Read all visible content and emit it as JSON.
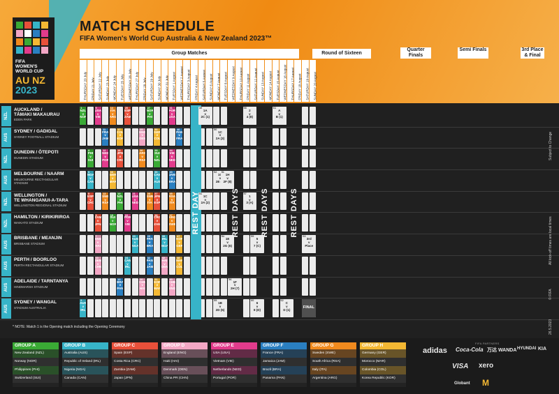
{
  "title": "MATCH SCHEDULE",
  "subtitle": "FIFA Women's World Cup Australia & New Zealand 2023™",
  "logo": {
    "line1": "FIFA",
    "line2": "WOMEN'S",
    "line3": "WORLD CUP",
    "countries": "AU NZ",
    "year": "2023"
  },
  "phases": {
    "group": "Group Matches",
    "r16": "Round of Sixteen",
    "qf": "Quarter Finals",
    "sf": "Semi Finals",
    "final": "3rd Place & Final"
  },
  "dates": [
    "THURSDAY 20 July",
    "FRIDAY 21 July",
    "SATURDAY 22 July",
    "SUNDAY 23 July",
    "MONDAY 24 July",
    "TUESDAY 25 July",
    "WEDNESDAY 26 July",
    "THURSDAY 27 July",
    "FRIDAY 28 July",
    "SATURDAY 29 July",
    "SUNDAY 30 July",
    "MONDAY 31 July",
    "TUESDAY 1 August",
    "WEDNESDAY 2 August",
    "THURSDAY 3 August",
    "FRIDAY 4 August",
    "SATURDAY 5 August",
    "SUNDAY 6 August",
    "MONDAY 7 August",
    "TUESDAY 8 August",
    "WEDNESDAY 9 August",
    "THURSDAY 10 August",
    "FRIDAY 11 August",
    "SATURDAY 12 August",
    "SUNDAY 13 August",
    "MONDAY 14 August",
    "TUESDAY 15 August",
    "WEDNESDAY 16 August",
    "THURSDAY 17 August",
    "FRIDAY 18 August",
    "SATURDAY 19 August",
    "SUNDAY 20 August"
  ],
  "venues": [
    {
      "country": "NZL",
      "name": "AUCKLAND /\nTĀMAKI MAKAURAU",
      "stadium": "EDEN PARK"
    },
    {
      "country": "AUS",
      "name": "SYDNEY / GADIGAL",
      "stadium": "SYDNEY FOOTBALL STADIUM"
    },
    {
      "country": "NZL",
      "name": "DUNEDIN / ŌTEPOTI",
      "stadium": "DUNEDIN STADIUM"
    },
    {
      "country": "AUS",
      "name": "MELBOURNE / NAARM",
      "stadium": "MELBOURNE RECTANGULAR\nSTADIUM"
    },
    {
      "country": "NZL",
      "name": "WELLINGTON /\nTE WHANGANUI-A-TARA",
      "stadium": "WELLINGTON REGIONAL STADIUM"
    },
    {
      "country": "NZL",
      "name": "HAMILTON / KIRIKIRIROA",
      "stadium": "WAIKATO STADIUM"
    },
    {
      "country": "AUS",
      "name": "BRISBANE / MEANJIN",
      "stadium": "BRISBANE STADIUM"
    },
    {
      "country": "AUS",
      "name": "PERTH / BOORLOO",
      "stadium": "PERTH RECTANGULAR STADIUM"
    },
    {
      "country": "AUS",
      "name": "ADELAIDE / TARNTANYA",
      "stadium": "HINDMARSH STADIUM"
    },
    {
      "country": "AUS",
      "name": "SYDNEY / WANGAL",
      "stadium": "STADIUM AUSTRALIA"
    }
  ],
  "matches": [
    {
      "row": 0,
      "col": 0,
      "n": "1",
      "time": "19:00",
      "t1": "NZL",
      "t2": "NOR",
      "color": "#3aaa35"
    },
    {
      "row": 0,
      "col": 2,
      "n": "9",
      "time": "19:00",
      "t1": "USA",
      "t2": "VIE",
      "color": "#e23b8c"
    },
    {
      "row": 0,
      "col": 4,
      "n": "14",
      "time": "19:30",
      "t1": "ITA",
      "t2": "ARG",
      "color": "#f08a1e"
    },
    {
      "row": 0,
      "col": 6,
      "n": "20",
      "time": "19:30",
      "t1": "ESP",
      "t2": "ZAM",
      "color": "#e8503a"
    },
    {
      "row": 0,
      "col": 9,
      "n": "27",
      "time": "19:30",
      "t1": "NOR",
      "t2": "PHI",
      "color": "#3aaa35"
    },
    {
      "row": 0,
      "col": 12,
      "n": "41",
      "time": "19:00",
      "t1": "POR",
      "t2": "USA",
      "color": "#e23b8c"
    },
    {
      "row": 1,
      "col": 3,
      "n": "11",
      "time": "20:00",
      "t1": "FRA",
      "t2": "JAM",
      "color": "#2a7fc1"
    },
    {
      "row": 1,
      "col": 5,
      "n": "17",
      "time": "12:00",
      "t1": "COL",
      "t2": "KOR",
      "color": "#f4b833"
    },
    {
      "row": 1,
      "col": 8,
      "n": "25",
      "time": "19:00",
      "t1": "ENG",
      "t2": "DEN",
      "color": "#f3a7c5"
    },
    {
      "row": 1,
      "col": 10,
      "n": "30",
      "time": "20:00",
      "t1": "GER",
      "t2": "COL",
      "color": "#f4b833"
    },
    {
      "row": 1,
      "col": 13,
      "n": "46",
      "time": "20:00",
      "t1": "PAN",
      "t2": "FRA",
      "color": "#2a7fc1"
    },
    {
      "row": 2,
      "col": 1,
      "n": "4",
      "time": "17:00",
      "t1": "PHI",
      "t2": "SUI",
      "color": "#3aaa35"
    },
    {
      "row": 2,
      "col": 3,
      "n": "12",
      "time": "17:00",
      "t1": "NED",
      "t2": "POR",
      "color": "#e23b8c"
    },
    {
      "row": 2,
      "col": 5,
      "n": "18",
      "time": "17:30",
      "t1": "JPN",
      "t2": "CRC",
      "color": "#e8503a"
    },
    {
      "row": 2,
      "col": 8,
      "n": "26",
      "time": "19:00",
      "t1": "ARG",
      "t2": "RSA",
      "color": "#f08a1e"
    },
    {
      "row": 2,
      "col": 10,
      "n": "35",
      "time": "19:00",
      "t1": "SUI",
      "t2": "NZL",
      "color": "#3aaa35"
    },
    {
      "row": 2,
      "col": 12,
      "n": "44",
      "time": "19:00",
      "t1": "VIE",
      "t2": "NED",
      "color": "#e23b8c"
    },
    {
      "row": 3,
      "col": 1,
      "n": "3",
      "time": "20:00",
      "t1": "NGA",
      "t2": "CAN",
      "color": "#37b4c8"
    },
    {
      "row": 3,
      "col": 4,
      "n": "16",
      "time": "18:00",
      "t1": "GER",
      "t2": "MAR",
      "color": "#f4b833"
    },
    {
      "row": 3,
      "col": 10,
      "n": "36",
      "time": "20:00",
      "t1": "CAN",
      "t2": "AUS",
      "color": "#37b4c8"
    },
    {
      "row": 3,
      "col": 12,
      "n": "43",
      "time": "20:00",
      "t1": "JAM",
      "t2": "BRA",
      "color": "#2a7fc1"
    },
    {
      "row": 4,
      "col": 1,
      "n": "5",
      "time": "19:30",
      "t1": "ESP",
      "t2": "CRC",
      "color": "#e8503a"
    },
    {
      "row": 4,
      "col": 3,
      "n": "13",
      "time": "17:30",
      "t1": "SWE",
      "t2": "RSA",
      "color": "#f08a1e"
    },
    {
      "row": 4,
      "col": 5,
      "n": "19",
      "time": "17:30",
      "t1": "NZL",
      "t2": "PHI",
      "color": "#3aaa35"
    },
    {
      "row": 4,
      "col": 7,
      "n": "21",
      "time": "17:00",
      "t1": "USA",
      "t2": "NED",
      "color": "#e23b8c"
    },
    {
      "row": 4,
      "col": 9,
      "n": "28",
      "time": "19:00",
      "t1": "SWE",
      "t2": "ITA",
      "color": "#f08a1e"
    },
    {
      "row": 4,
      "col": 10,
      "n": "37",
      "time": "19:00",
      "t1": "JPN",
      "t2": "ESP",
      "color": "#e8503a"
    },
    {
      "row": 4,
      "col": 12,
      "n": "45",
      "time": "19:00",
      "t1": "RSA",
      "t2": "ITA",
      "color": "#f08a1e"
    },
    {
      "row": 5,
      "col": 2,
      "n": "8",
      "time": "19:00",
      "t1": "ZAM",
      "t2": "JPN",
      "color": "#e8503a"
    },
    {
      "row": 5,
      "col": 4,
      "n": "15",
      "time": "19:00",
      "t1": "SUI",
      "t2": "NOR",
      "color": "#3aaa35"
    },
    {
      "row": 5,
      "col": 6,
      "n": "22",
      "time": "17:30",
      "t1": "POR",
      "t2": "VIE",
      "color": "#e23b8c"
    },
    {
      "row": 5,
      "col": 10,
      "n": "38",
      "time": "19:00",
      "t1": "CRC",
      "t2": "ZAM",
      "color": "#e8503a"
    },
    {
      "row": 5,
      "col": 12,
      "n": "47",
      "time": "19:00",
      "t1": "ARG",
      "t2": "SWE",
      "color": "#f08a1e"
    },
    {
      "row": 6,
      "col": 2,
      "n": "7",
      "time": "20:00",
      "t1": "ENG",
      "t2": "HAI",
      "color": "#f3a7c5"
    },
    {
      "row": 6,
      "col": 7,
      "n": "23",
      "time": "20:00",
      "t1": "AUS",
      "t2": "NGA",
      "color": "#37b4c8"
    },
    {
      "row": 6,
      "col": 9,
      "n": "29",
      "time": "20:00",
      "t1": "FRA",
      "t2": "BRA",
      "color": "#2a7fc1"
    },
    {
      "row": 6,
      "col": 11,
      "n": "39",
      "time": "20:00",
      "t1": "IRL",
      "t2": "NGA",
      "color": "#37b4c8"
    },
    {
      "row": 6,
      "col": 13,
      "n": "47",
      "time": "20:00",
      "t1": "KOR",
      "t2": "GER",
      "color": "#f4b833"
    },
    {
      "row": 7,
      "col": 2,
      "n": "10",
      "time": "20:00",
      "t1": "DEN",
      "t2": "CHN",
      "color": "#f3a7c5"
    },
    {
      "row": 7,
      "col": 6,
      "n": "24",
      "time": "20:00",
      "t1": "CAN",
      "t2": "IRL",
      "color": "#37b4c8"
    },
    {
      "row": 7,
      "col": 9,
      "n": "32",
      "time": "20:00",
      "t1": "PAN",
      "t2": "JAM",
      "color": "#2a7fc1"
    },
    {
      "row": 7,
      "col": 11,
      "n": "42",
      "time": "20:00",
      "t1": "HAI",
      "t2": "DEN",
      "color": "#f3a7c5"
    },
    {
      "row": 7,
      "col": 13,
      "n": "48",
      "time": "20:00",
      "t1": "MAR",
      "t2": "COL",
      "color": "#f4b833"
    },
    {
      "row": 8,
      "col": 5,
      "n": "13",
      "time": "20:30",
      "t1": "BRA",
      "t2": "PAN",
      "color": "#2a7fc1"
    },
    {
      "row": 8,
      "col": 8,
      "n": "26",
      "time": "20:30",
      "t1": "CHN",
      "t2": "HAI",
      "color": "#f3a7c5"
    },
    {
      "row": 8,
      "col": 10,
      "n": "31",
      "time": "20:00",
      "t1": "KOR",
      "t2": "MAR",
      "color": "#f4b833"
    },
    {
      "row": 8,
      "col": 12,
      "n": "40",
      "time": "20:00",
      "t1": "CHN",
      "t2": "ENG",
      "color": "#f3a7c5"
    },
    {
      "row": 9,
      "col": 0,
      "n": "2",
      "time": "20:00",
      "t1": "AUS",
      "t2": "IRL",
      "color": "#37b4c8"
    }
  ],
  "knockouts": [
    {
      "row": 0,
      "col": 16,
      "n": "49",
      "time": "17:00",
      "t1": "1A",
      "t2": "2C (1)"
    },
    {
      "row": 1,
      "col": 18,
      "n": "50",
      "time": "17:30",
      "t1": "1C",
      "t2": "2A (3)"
    },
    {
      "row": 3,
      "col": 18,
      "n": "52",
      "time": "19:00",
      "t1": "1G",
      "t2": "2E (4)"
    },
    {
      "row": 3,
      "col": 19,
      "n": "51",
      "time": "18:30",
      "t1": "1H",
      "t2": "2F (8)"
    },
    {
      "row": 4,
      "col": 16,
      "n": "51",
      "time": "17:00",
      "t1": "1C",
      "t2": "2A (2)"
    },
    {
      "row": 6,
      "col": 19,
      "n": "54",
      "time": "18:30",
      "t1": "1E",
      "t2": "2G (6)"
    },
    {
      "row": 8,
      "col": 20,
      "n": "56",
      "time": "17:30",
      "t1": "1F",
      "t2": "2H (7)"
    },
    {
      "row": 9,
      "col": 18,
      "n": "55",
      "time": "20:30",
      "t1": "1B",
      "t2": "2D (5)"
    },
    {
      "row": 0,
      "col": 22,
      "n": "58",
      "time": "19:30",
      "t1": "2",
      "t2": "4 (8)"
    },
    {
      "row": 4,
      "col": 22,
      "n": "57",
      "time": "19:00",
      "t1": "1",
      "t2": "3 (A)"
    },
    {
      "row": 6,
      "col": 23,
      "n": "59",
      "time": "20:00",
      "t1": "5",
      "t2": "7 (C)"
    },
    {
      "row": 9,
      "col": 23,
      "n": "60",
      "time": "20:30",
      "t1": "6",
      "t2": "8 (D)"
    },
    {
      "row": 0,
      "col": 26,
      "n": "61",
      "time": "20:00",
      "t1": "A",
      "t2": "B (1)"
    },
    {
      "row": 9,
      "col": 27,
      "n": "62",
      "time": "20:00",
      "t1": "C",
      "t2": "D (1)"
    },
    {
      "row": 6,
      "col": 30,
      "n": "63",
      "time": "18:00",
      "t1": "3rd",
      "t2": "Place"
    }
  ],
  "final_label": "FINAL",
  "rest_day": "REST DAY",
  "rest_days": "REST DAYS",
  "side_notes": {
    "subject": "Subject to Change",
    "local": "All kick-off times are local times",
    "date": "26.5.2023",
    "fifa": "© FIFA"
  },
  "note": "* NOTE: Match 1 is the Opening match including the Opening Ceremony",
  "groups": [
    {
      "name": "GROUP A",
      "color": "#3aaa35",
      "teams": [
        "New Zealand (NZL)",
        "Norway (NOR)",
        "Philippines (PHI)",
        "Switzerland (SUI)"
      ]
    },
    {
      "name": "GROUP B",
      "color": "#37b4c8",
      "teams": [
        "Australia (AUS)",
        "Republic of Ireland (IRL)",
        "Nigeria (NGA)",
        "Canada (CAN)"
      ]
    },
    {
      "name": "GROUP C",
      "color": "#e8503a",
      "teams": [
        "Spain (ESP)",
        "Costa Rica (CRC)",
        "Zambia (ZAM)",
        "Japan (JPN)"
      ]
    },
    {
      "name": "GROUP D",
      "color": "#f3a7c5",
      "teams": [
        "England (ENG)",
        "Haiti (HAI)",
        "Denmark (DEN)",
        "China PR (CHN)"
      ]
    },
    {
      "name": "GROUP E",
      "color": "#e23b8c",
      "teams": [
        "USA (USA)",
        "Vietnam (VIE)",
        "Netherlands (NED)",
        "Portugal (POR)"
      ]
    },
    {
      "name": "GROUP F",
      "color": "#2a7fc1",
      "teams": [
        "France (FRA)",
        "Jamaica (JAM)",
        "Brazil (BRA)",
        "Panama (PAN)"
      ]
    },
    {
      "name": "GROUP G",
      "color": "#f08a1e",
      "teams": [
        "Sweden (SWE)",
        "South Africa (RSA)",
        "Italy (ITA)",
        "Argentina (ARG)"
      ]
    },
    {
      "name": "GROUP H",
      "color": "#f4b833",
      "teams": [
        "Germany (GER)",
        "Morocco (MAR)",
        "Colombia (COL)",
        "Korea Republic (KOR)"
      ]
    }
  ],
  "sponsors": {
    "partners_label": "FIFA PARTNERS",
    "cocacola": "Coca-Cola",
    "wanda": "万达 WANDA",
    "hyundai": "HYUNDAI",
    "kia": "KIA",
    "visa": "VISA",
    "xero": "xero",
    "globant": "Globant",
    "mcd": "M",
    "adidas": "adidas"
  }
}
